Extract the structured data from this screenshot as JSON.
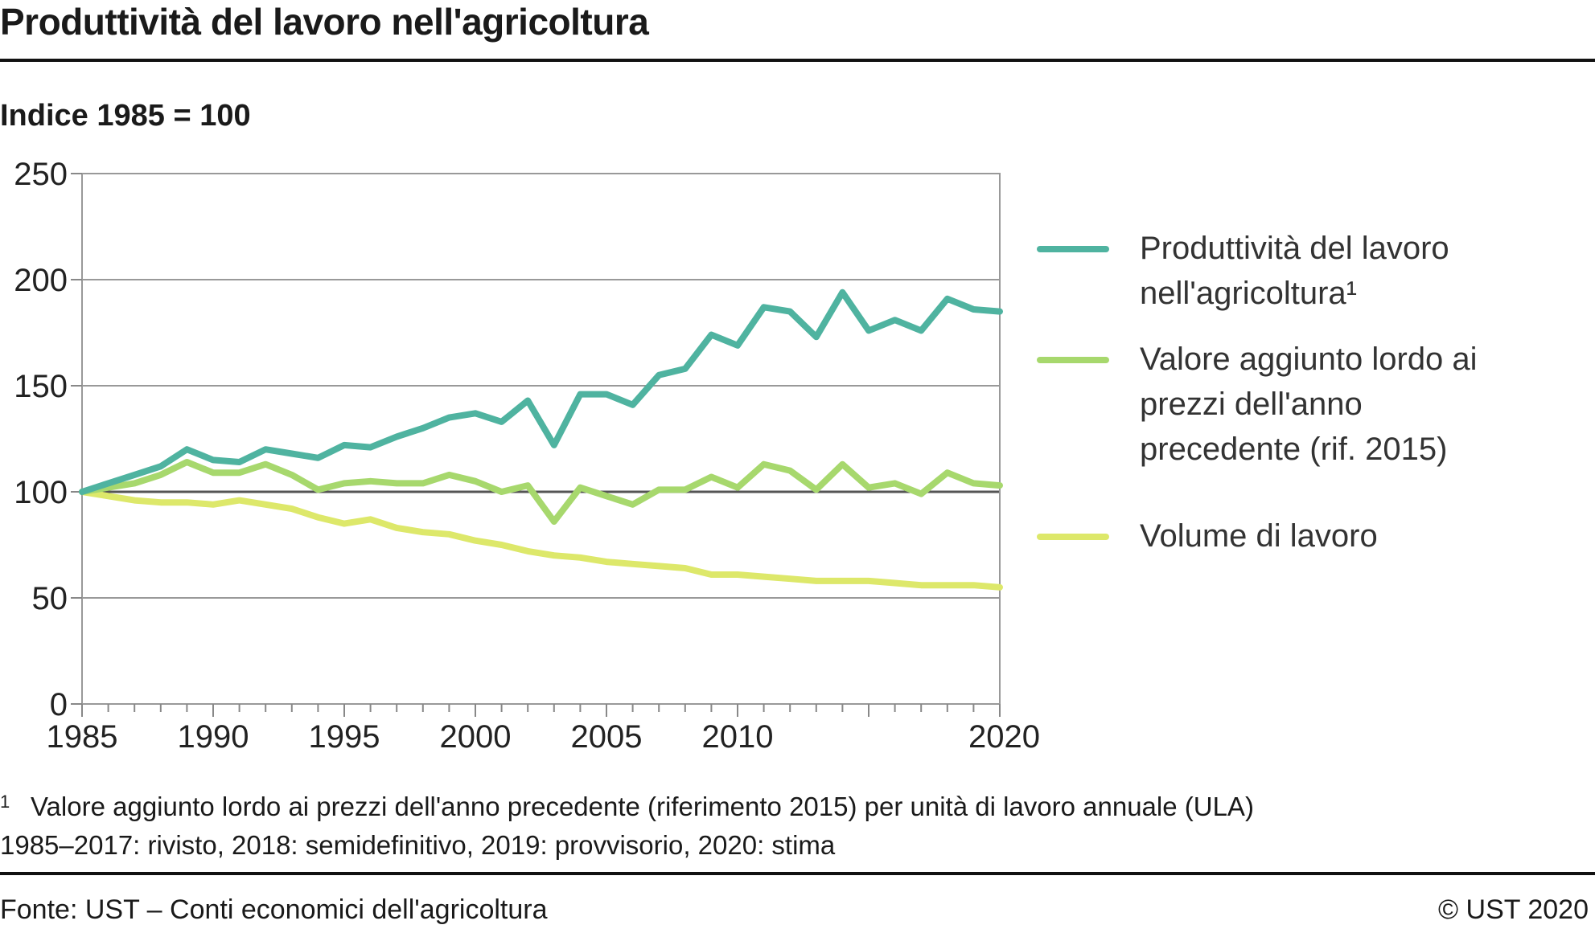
{
  "header": {
    "title": "Produttività del lavoro nell'agricoltura",
    "subtitle": "Indice 1985 = 100"
  },
  "footnote": {
    "marker": "1",
    "line1": "Valore aggiunto lordo ai prezzi dell'anno precedente (riferimento 2015) per unità di lavoro annuale (ULA)",
    "line2": "1985–2017: rivisto, 2018: semidefinitivo, 2019: provvisorio, 2020: stima"
  },
  "footer": {
    "source": "Fonte: UST – Conti economici dell'agricoltura",
    "copyright": "© UST 2020"
  },
  "chart_data": {
    "type": "line",
    "title": "Produttività del lavoro nell'agricoltura",
    "ylabel": "Indice 1985 = 100",
    "ylim": [
      0,
      250
    ],
    "xlim": [
      1985,
      2020
    ],
    "yticks": [
      0,
      50,
      100,
      150,
      200,
      250
    ],
    "xtick_labels": [
      "1985",
      "1990",
      "1995",
      "2000",
      "2005",
      "2010",
      "2020"
    ],
    "reference_line": 100,
    "grid": true,
    "legend_position": "right",
    "x": [
      1985,
      1986,
      1987,
      1988,
      1989,
      1990,
      1991,
      1992,
      1993,
      1994,
      1995,
      1996,
      1997,
      1998,
      1999,
      2000,
      2001,
      2002,
      2003,
      2004,
      2005,
      2006,
      2007,
      2008,
      2009,
      2010,
      2011,
      2012,
      2013,
      2014,
      2015,
      2016,
      2017,
      2018,
      2019,
      2020
    ],
    "series": [
      {
        "name": "Produttività del lavoro nell'agricoltura¹",
        "legend_lines": [
          "Produttività del lavoro",
          "nell'agricoltura¹"
        ],
        "color": "#4fb3a0",
        "values": [
          100,
          104,
          108,
          112,
          120,
          115,
          114,
          120,
          118,
          116,
          122,
          121,
          126,
          130,
          135,
          137,
          133,
          143,
          122,
          146,
          146,
          141,
          155,
          158,
          174,
          169,
          187,
          185,
          173,
          194,
          176,
          181,
          176,
          191,
          186,
          185
        ]
      },
      {
        "name": "Valore aggiunto lordo ai prezzi dell'anno precedente (rif. 2015)",
        "legend_lines": [
          "Valore aggiunto lordo ai",
          "prezzi dell'anno",
          "precedente (rif. 2015)"
        ],
        "color": "#a7d86d",
        "values": [
          100,
          102,
          104,
          108,
          114,
          109,
          109,
          113,
          108,
          101,
          104,
          105,
          104,
          104,
          108,
          105,
          100,
          103,
          86,
          102,
          98,
          94,
          101,
          101,
          107,
          102,
          113,
          110,
          101,
          113,
          102,
          104,
          99,
          109,
          104,
          103
        ]
      },
      {
        "name": "Volume di lavoro",
        "legend_lines": [
          "Volume di lavoro"
        ],
        "color": "#dde86a",
        "values": [
          100,
          98,
          96,
          95,
          95,
          94,
          96,
          94,
          92,
          88,
          85,
          87,
          83,
          81,
          80,
          77,
          75,
          72,
          70,
          69,
          67,
          66,
          65,
          64,
          61,
          61,
          60,
          59,
          58,
          58,
          58,
          57,
          56,
          56,
          56,
          55
        ]
      }
    ]
  }
}
